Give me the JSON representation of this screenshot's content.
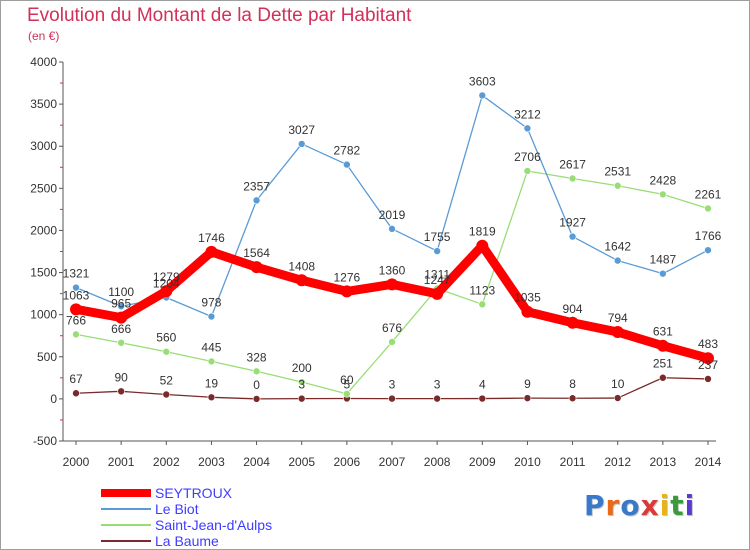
{
  "title": "Evolution du Montant de la Dette par Habitant",
  "unit": "(en €)",
  "logo": {
    "text": "Proxiti",
    "colors": [
      "#3a78c9",
      "#e86a1a",
      "#3a78c9",
      "#d93a3a",
      "#e8b21a",
      "#3a9a3a",
      "#5a3ad0"
    ]
  },
  "chart_data": {
    "type": "line",
    "x": [
      "2000",
      "2001",
      "2002",
      "2003",
      "2004",
      "2005",
      "2006",
      "2007",
      "2008",
      "2009",
      "2010",
      "2011",
      "2012",
      "2013",
      "2014"
    ],
    "ylim": [
      -500,
      4000
    ],
    "yticks": [
      "-500",
      "0",
      "500",
      "1000",
      "1500",
      "2000",
      "2500",
      "3000",
      "3500",
      "4000"
    ],
    "grid": false,
    "legend_position": "bottom-left",
    "series": [
      {
        "name": "SEYTROUX",
        "color": "#ff0000",
        "values": [
          1063,
          965,
          1279,
          1746,
          1564,
          1408,
          1276,
          1360,
          1247,
          1819,
          1035,
          904,
          794,
          631,
          483
        ],
        "labels": [
          "1063",
          "965",
          "1279",
          "1746",
          "1564",
          "1408",
          "1276",
          "1360",
          "1247",
          "1819",
          "1035",
          "904",
          "794",
          "631",
          "483"
        ]
      },
      {
        "name": "Le Biot",
        "color": "#5b9bd5",
        "values": [
          1321,
          1100,
          1204,
          978,
          2357,
          3027,
          2782,
          2019,
          1755,
          3603,
          3212,
          1927,
          1642,
          1487,
          1766
        ],
        "labels": [
          "1321",
          "1100",
          "1204",
          "978",
          "2357",
          "3027",
          "2782",
          "2019",
          "1755",
          "3603",
          "3212",
          "1927",
          "1642",
          "1487",
          "1766"
        ]
      },
      {
        "name": "Saint-Jean-d'Aulps",
        "color": "#99dd77",
        "values": [
          766,
          666,
          560,
          445,
          328,
          200,
          60,
          676,
          1311,
          1123,
          2706,
          2617,
          2531,
          2428,
          2261
        ],
        "labels": [
          "766",
          "666",
          "560",
          "445",
          "328",
          "200",
          "60",
          "676",
          "1311",
          "1123",
          "2706",
          "2617",
          "2531",
          "2428",
          "2261"
        ]
      },
      {
        "name": "La Baume",
        "color": "#7a2a2a",
        "values": [
          67,
          90,
          52,
          19,
          0,
          3,
          5,
          3,
          3,
          4,
          9,
          8,
          10,
          251,
          237
        ],
        "labels": [
          "67",
          "90",
          "52",
          "19",
          "0",
          "3",
          "5",
          "3",
          "3",
          "4",
          "9",
          "8",
          "10",
          "251",
          "237"
        ]
      }
    ]
  }
}
